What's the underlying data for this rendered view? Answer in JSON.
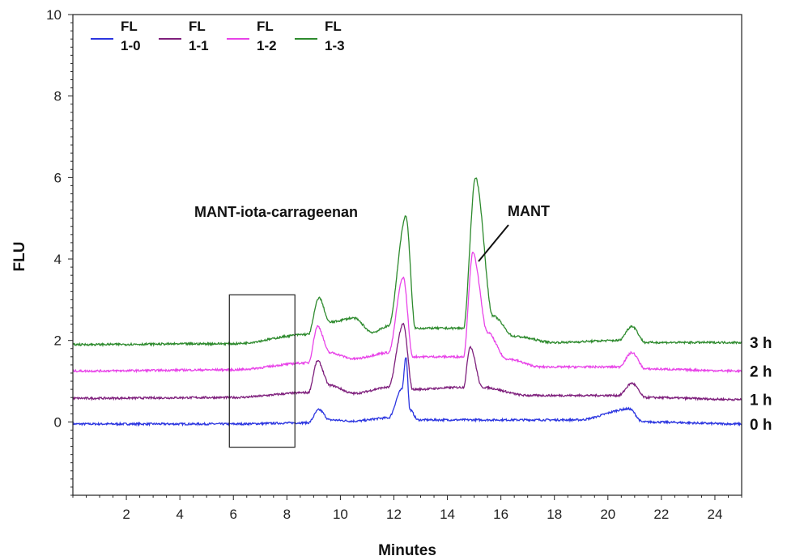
{
  "chart_data": {
    "type": "line",
    "xlabel": "Minutes",
    "ylabel": "FLU",
    "xlim": [
      0,
      25
    ],
    "ylim": [
      -1.8,
      10
    ],
    "x_ticks": [
      2,
      4,
      6,
      8,
      10,
      12,
      14,
      16,
      18,
      20,
      22,
      24
    ],
    "y_ticks": [
      0,
      2,
      4,
      6,
      8,
      10
    ],
    "grid": false,
    "legend_position": "top-left",
    "series": [
      {
        "legend_line1": "FL",
        "legend_line2": "1-0",
        "time_label": "0 h",
        "color": "#2b35e0",
        "points": [
          [
            0,
            -0.05
          ],
          [
            6,
            -0.05
          ],
          [
            8.8,
            -0.02
          ],
          [
            9.2,
            0.3
          ],
          [
            9.6,
            0.05
          ],
          [
            10.5,
            0.02
          ],
          [
            11.8,
            0.1
          ],
          [
            12.3,
            0.8
          ],
          [
            12.45,
            1.6
          ],
          [
            12.6,
            0.3
          ],
          [
            12.9,
            0.05
          ],
          [
            18.9,
            0.05
          ],
          [
            20.8,
            0.32
          ],
          [
            21.3,
            0.0
          ],
          [
            25,
            -0.05
          ]
        ]
      },
      {
        "legend_line1": "FL",
        "legend_line2": "1-1",
        "time_label": "1 h",
        "color": "#7e1f7c",
        "points": [
          [
            0,
            0.58
          ],
          [
            6,
            0.6
          ],
          [
            8.8,
            0.72
          ],
          [
            9.15,
            1.5
          ],
          [
            9.6,
            0.9
          ],
          [
            10.5,
            0.7
          ],
          [
            11.8,
            0.85
          ],
          [
            12.35,
            2.4
          ],
          [
            12.7,
            0.8
          ],
          [
            14.6,
            0.85
          ],
          [
            14.85,
            1.85
          ],
          [
            15.3,
            0.85
          ],
          [
            17,
            0.65
          ],
          [
            20.4,
            0.65
          ],
          [
            20.9,
            0.95
          ],
          [
            21.4,
            0.6
          ],
          [
            25,
            0.55
          ]
        ]
      },
      {
        "legend_line1": "FL",
        "legend_line2": "1-2",
        "time_label": "2 h",
        "color": "#e843e8",
        "points": [
          [
            0,
            1.25
          ],
          [
            6,
            1.28
          ],
          [
            8.8,
            1.45
          ],
          [
            9.15,
            2.35
          ],
          [
            9.6,
            1.7
          ],
          [
            10.5,
            1.55
          ],
          [
            11.8,
            1.7
          ],
          [
            12.35,
            3.55
          ],
          [
            12.7,
            1.6
          ],
          [
            14.6,
            1.6
          ],
          [
            14.95,
            4.15
          ],
          [
            15.5,
            2.2
          ],
          [
            16.2,
            1.55
          ],
          [
            17.5,
            1.35
          ],
          [
            20.4,
            1.35
          ],
          [
            20.9,
            1.7
          ],
          [
            21.4,
            1.3
          ],
          [
            25,
            1.25
          ]
        ]
      },
      {
        "legend_line1": "FL",
        "legend_line2": "1-3",
        "time_label": "3 h",
        "color": "#2d8a2d",
        "points": [
          [
            0,
            1.9
          ],
          [
            6,
            1.92
          ],
          [
            8.8,
            2.15
          ],
          [
            9.2,
            3.05
          ],
          [
            9.6,
            2.45
          ],
          [
            10.5,
            2.55
          ],
          [
            11.2,
            2.2
          ],
          [
            11.8,
            2.35
          ],
          [
            12.45,
            5.05
          ],
          [
            12.8,
            2.3
          ],
          [
            14.6,
            2.3
          ],
          [
            15.05,
            6.0
          ],
          [
            15.7,
            2.6
          ],
          [
            16.5,
            2.1
          ],
          [
            18,
            1.95
          ],
          [
            20.4,
            2.0
          ],
          [
            20.9,
            2.35
          ],
          [
            21.4,
            1.95
          ],
          [
            25,
            1.95
          ]
        ]
      }
    ],
    "annotations": [
      {
        "text": "MANT-iota-carrageenan"
      },
      {
        "text": "MANT"
      }
    ]
  }
}
